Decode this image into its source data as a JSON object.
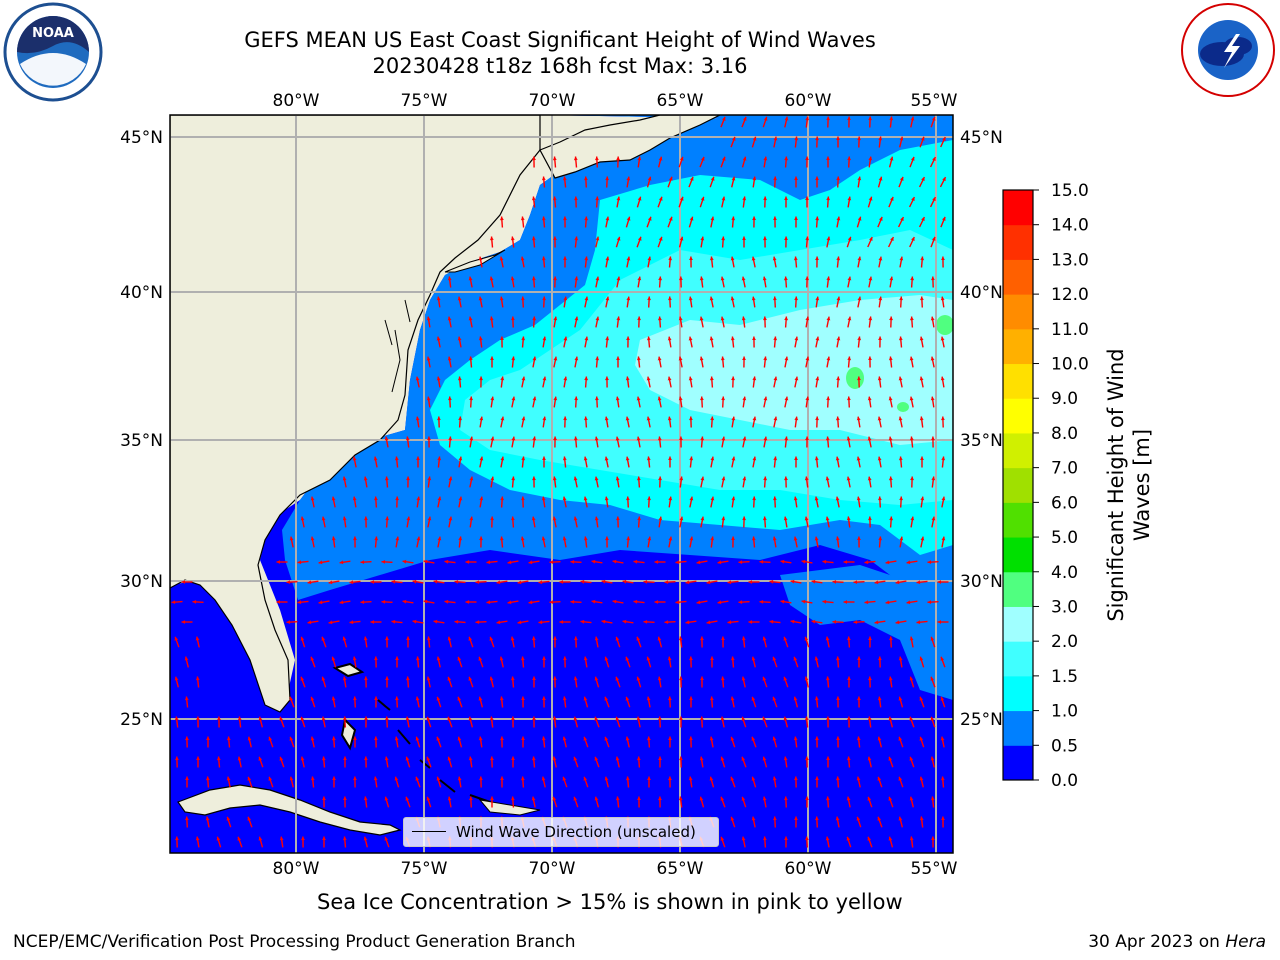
{
  "title_line1": "GEFS MEAN US East Coast Significant Height of Wind Waves",
  "title_line2": "20230428 t18z 168h fcst   Max: 3.16",
  "lon_labels": [
    "80°W",
    "75°W",
    "70°W",
    "65°W",
    "60°W",
    "55°W"
  ],
  "lat_labels": [
    "45°N",
    "40°N",
    "35°N",
    "30°N",
    "25°N"
  ],
  "colorbar": {
    "title": "Significant Height of Wind Waves [m]",
    "ticks": [
      "0.0",
      "0.5",
      "1.0",
      "1.5",
      "2.0",
      "3.0",
      "4.0",
      "5.0",
      "6.0",
      "7.0",
      "8.0",
      "9.0",
      "10.0",
      "11.0",
      "12.0",
      "13.0",
      "14.0",
      "15.0"
    ],
    "colors": [
      "#0000ff",
      "#0080ff",
      "#00ffff",
      "#40ffff",
      "#a0ffff",
      "#50ff80",
      "#00e000",
      "#50e000",
      "#a0e000",
      "#d0f000",
      "#ffff00",
      "#ffe000",
      "#ffb000",
      "#ff8c00",
      "#ff6000",
      "#ff3000",
      "#ff0000"
    ]
  },
  "legend_label": "Wind Wave Direction (unscaled)",
  "ice_note": "Sea Ice Concentration > 15% is shown in pink to yellow",
  "footer_left": "NCEP/EMC/Verification Post Processing Product Generation Branch",
  "footer_date": "30 Apr 2023 on ",
  "footer_machine": "Hera",
  "logos": {
    "left": "NOAA",
    "right": "NATIONAL WEATHER SERVICE"
  },
  "colors": {
    "land": "#eeeedc",
    "grid": "#b0b0b0",
    "arrow": "#ff0000"
  }
}
